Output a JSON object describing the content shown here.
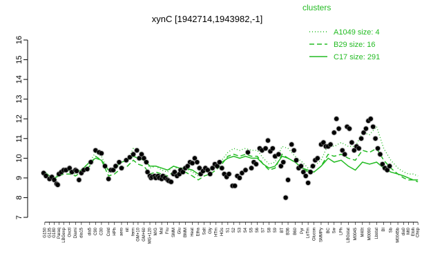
{
  "chart_data": {
    "type": "line",
    "title": "xynC [1942714,1943982,-1]",
    "xlabel": "",
    "ylabel": "",
    "ylim": [
      7,
      16
    ],
    "yticks": [
      7,
      8,
      9,
      10,
      11,
      12,
      13,
      14,
      15,
      16
    ],
    "grid": false,
    "legend": {
      "title": "clusters",
      "position": "top-right",
      "color": "#22bb22",
      "entries": [
        {
          "label": "A1049 size: 4",
          "style": "dotted"
        },
        {
          "label": "B29 size: 16",
          "style": "dashed"
        },
        {
          "label": "C17 size: 291",
          "style": "solid"
        }
      ]
    },
    "colors": {
      "line": "#22bb22",
      "points": "#000000"
    },
    "x_labels": [
      "G150",
      "G135",
      "G180",
      "Paraq",
      "LBGexp",
      "Oxctl",
      "Diami",
      "dia15",
      "dia5",
      "C90",
      "C30",
      "Cold",
      "HPh",
      "aero",
      "nit",
      "ferm",
      "GM+10",
      "GM+60",
      "MG+120",
      "M/G",
      "Mal",
      "Fru",
      "SMM",
      "Glu",
      "BMM",
      "Heat",
      "Etha",
      "Salt",
      "Gly",
      "HTm",
      "HGs",
      "S1",
      "S2",
      "S3",
      "S4",
      "S5",
      "S6",
      "S7",
      "S8",
      "S9",
      "BT",
      "B36",
      "B60",
      "Pyr",
      "LoTm",
      "Glucon",
      "SMMPy",
      "BC",
      "Sw",
      "LPh",
      "LBGstat",
      "M0045",
      "M40t",
      "M0090",
      "Lbstat",
      "BI",
      "Sb",
      "M0045b",
      "dia0",
      "Mt0",
      "Etoh",
      "Chsp"
    ],
    "x": [
      0.4,
      0.8,
      1.2,
      1.6,
      2.0,
      2.5,
      3.0,
      3.5,
      4.2,
      4.7,
      5.2,
      5.8,
      6.3,
      6.9,
      7.4,
      7.9,
      8.3,
      8.8,
      9.3,
      9.8,
      10.3,
      10.8,
      11.3,
      11.8,
      12.3,
      12.9,
      13.4,
      13.9,
      14.4,
      14.9,
      15.4,
      15.9,
      16.4,
      16.9,
      17.4,
      17.9,
      18.4,
      18.9,
      19.4,
      19.9,
      20.5,
      21.0,
      21.6,
      22.2,
      22.7,
      23.2,
      23.8,
      24.4,
      24.9,
      25.5,
      26.1,
      26.7,
      27.3,
      27.9,
      28.5,
      29.1,
      29.7,
      30.3,
      30.8,
      31.2,
      31.6,
      32.0
    ],
    "series": [
      {
        "values": [
          9.2,
          9.0,
          9.0,
          9.2,
          9.3,
          9.3,
          9.2,
          9.4,
          9.8,
          10.3,
          10.1,
          9.3,
          9.4,
          9.8,
          9.9,
          10.5,
          10.4,
          10.1,
          9.5,
          9.6,
          9.4,
          9.3,
          9.6,
          9.4,
          9.5,
          9.3,
          9.1,
          9.3,
          9.4,
          9.6,
          9.9,
          10.3,
          10.5,
          10.4,
          10.5,
          10.4,
          10.4,
          10.0,
          9.7,
          9.8,
          10.6,
          10.5,
          10.1,
          9.8,
          9.5,
          9.6,
          9.9,
          10.7,
          10.6,
          10.8,
          10.6,
          10.6,
          11.3,
          11.2,
          11.6,
          10.5,
          9.9,
          9.5,
          9.3,
          9.2,
          9.2,
          9.1
        ]
      },
      {
        "values": [
          9.1,
          9.0,
          9.0,
          9.1,
          9.2,
          9.2,
          9.1,
          9.3,
          9.6,
          10.1,
          9.9,
          9.1,
          9.2,
          9.5,
          9.6,
          9.9,
          9.7,
          9.6,
          9.2,
          9.3,
          9.2,
          9.1,
          9.3,
          9.2,
          9.3,
          9.1,
          8.9,
          9.1,
          9.2,
          9.4,
          9.7,
          10.1,
          10.2,
          10.1,
          10.2,
          10.1,
          10.1,
          9.7,
          9.4,
          9.5,
          10.2,
          10.0,
          9.8,
          9.5,
          9.3,
          9.3,
          9.6,
          10.2,
          10.1,
          10.2,
          10.0,
          9.9,
          10.4,
          10.3,
          10.5,
          9.9,
          9.5,
          9.2,
          9.0,
          8.9,
          8.9,
          8.8
        ]
      },
      {
        "values": [
          9.3,
          9.1,
          9.0,
          9.1,
          9.3,
          9.4,
          9.3,
          9.4,
          9.8,
          10.0,
          9.9,
          9.4,
          9.5,
          9.8,
          9.9,
          10.1,
          10.0,
          9.9,
          9.6,
          9.6,
          9.5,
          9.4,
          9.6,
          9.5,
          9.5,
          9.4,
          9.2,
          9.3,
          9.4,
          9.6,
          9.8,
          10.0,
          10.1,
          10.0,
          10.1,
          10.0,
          10.0,
          9.7,
          9.5,
          9.6,
          10.1,
          10.0,
          9.8,
          9.5,
          9.4,
          9.3,
          9.6,
          10.0,
          9.8,
          9.9,
          9.6,
          9.4,
          9.8,
          9.7,
          9.8,
          9.5,
          9.3,
          9.2,
          9.1,
          9.0,
          8.9,
          8.9
        ]
      }
    ],
    "points": [
      [
        0.3,
        9.25
      ],
      [
        0.5,
        9.1
      ],
      [
        0.8,
        8.95
      ],
      [
        1.0,
        9.05
      ],
      [
        1.2,
        8.9
      ],
      [
        1.4,
        8.7
      ],
      [
        1.5,
        8.65
      ],
      [
        1.6,
        9.2
      ],
      [
        1.8,
        9.3
      ],
      [
        2.0,
        9.4
      ],
      [
        2.2,
        9.4
      ],
      [
        2.5,
        9.5
      ],
      [
        2.7,
        9.3
      ],
      [
        3.0,
        9.4
      ],
      [
        3.1,
        9.35
      ],
      [
        3.3,
        8.9
      ],
      [
        3.5,
        9.25
      ],
      [
        3.7,
        9.4
      ],
      [
        4.0,
        9.45
      ],
      [
        4.3,
        9.8
      ],
      [
        4.7,
        10.4
      ],
      [
        5.0,
        10.3
      ],
      [
        5.2,
        10.25
      ],
      [
        5.5,
        9.6
      ],
      [
        5.8,
        8.95
      ],
      [
        6.0,
        9.4
      ],
      [
        6.2,
        9.4
      ],
      [
        6.4,
        9.6
      ],
      [
        6.7,
        9.8
      ],
      [
        6.9,
        9.5
      ],
      [
        7.3,
        9.9
      ],
      [
        7.6,
        10.05
      ],
      [
        7.9,
        10.2
      ],
      [
        8.2,
        10.4
      ],
      [
        8.4,
        10.0
      ],
      [
        8.6,
        10.2
      ],
      [
        8.8,
        10.0
      ],
      [
        9.0,
        9.8
      ],
      [
        9.1,
        9.3
      ],
      [
        9.3,
        9.1
      ],
      [
        9.4,
        9.0
      ],
      [
        9.5,
        9.05
      ],
      [
        9.7,
        9.1
      ],
      [
        9.8,
        9.0
      ],
      [
        10.0,
        9.1
      ],
      [
        10.1,
        9.0
      ],
      [
        10.3,
        8.95
      ],
      [
        10.4,
        9.1
      ],
      [
        10.6,
        9.0
      ],
      [
        10.8,
        8.9
      ],
      [
        10.9,
        8.85
      ],
      [
        11.1,
        8.8
      ],
      [
        11.3,
        9.2
      ],
      [
        11.4,
        9.3
      ],
      [
        11.6,
        9.1
      ],
      [
        11.8,
        9.2
      ],
      [
        11.9,
        9.4
      ],
      [
        12.1,
        9.3
      ],
      [
        12.3,
        9.5
      ],
      [
        12.5,
        9.6
      ],
      [
        12.7,
        9.8
      ],
      [
        12.9,
        9.75
      ],
      [
        13.1,
        10.0
      ],
      [
        13.3,
        9.8
      ],
      [
        13.5,
        9.5
      ],
      [
        13.6,
        9.2
      ],
      [
        13.8,
        9.35
      ],
      [
        14.0,
        9.5
      ],
      [
        14.2,
        9.4
      ],
      [
        14.4,
        9.2
      ],
      [
        14.6,
        9.5
      ],
      [
        14.8,
        9.7
      ],
      [
        15.0,
        9.6
      ],
      [
        15.2,
        9.8
      ],
      [
        15.4,
        9.5
      ],
      [
        15.6,
        9.2
      ],
      [
        15.8,
        9.05
      ],
      [
        16.0,
        9.2
      ],
      [
        16.3,
        8.6
      ],
      [
        16.5,
        8.6
      ],
      [
        16.7,
        9.1
      ],
      [
        16.9,
        9.0
      ],
      [
        17.1,
        9.25
      ],
      [
        17.4,
        9.4
      ],
      [
        17.6,
        10.3
      ],
      [
        17.9,
        9.5
      ],
      [
        18.1,
        9.8
      ],
      [
        18.3,
        9.7
      ],
      [
        18.6,
        10.5
      ],
      [
        18.8,
        10.4
      ],
      [
        19.1,
        10.5
      ],
      [
        19.3,
        10.9
      ],
      [
        19.5,
        10.35
      ],
      [
        19.7,
        10.5
      ],
      [
        19.9,
        10.1
      ],
      [
        20.2,
        10.2
      ],
      [
        20.4,
        9.6
      ],
      [
        20.6,
        9.8
      ],
      [
        20.8,
        8.0
      ],
      [
        21.0,
        8.9
      ],
      [
        21.3,
        10.7
      ],
      [
        21.5,
        10.4
      ],
      [
        21.7,
        9.9
      ],
      [
        21.9,
        9.5
      ],
      [
        22.1,
        9.6
      ],
      [
        22.3,
        9.3
      ],
      [
        22.5,
        9.1
      ],
      [
        22.7,
        8.75
      ],
      [
        22.9,
        9.3
      ],
      [
        23.1,
        9.6
      ],
      [
        23.3,
        9.9
      ],
      [
        23.5,
        10.0
      ],
      [
        23.8,
        10.7
      ],
      [
        24.0,
        10.8
      ],
      [
        24.2,
        10.6
      ],
      [
        24.4,
        10.6
      ],
      [
        24.6,
        10.7
      ],
      [
        24.9,
        11.3
      ],
      [
        25.1,
        12.0
      ],
      [
        25.3,
        11.5
      ],
      [
        25.6,
        10.4
      ],
      [
        25.8,
        10.2
      ],
      [
        26.0,
        11.6
      ],
      [
        26.2,
        11.5
      ],
      [
        26.4,
        10.8
      ],
      [
        26.6,
        10.4
      ],
      [
        26.8,
        10.6
      ],
      [
        27.0,
        10.5
      ],
      [
        27.2,
        11.0
      ],
      [
        27.4,
        11.3
      ],
      [
        27.6,
        11.5
      ],
      [
        27.8,
        11.9
      ],
      [
        28.0,
        12.0
      ],
      [
        28.2,
        11.6
      ],
      [
        28.4,
        11.0
      ],
      [
        28.6,
        10.5
      ],
      [
        28.8,
        10.2
      ],
      [
        29.0,
        9.7
      ],
      [
        29.2,
        9.5
      ],
      [
        29.4,
        9.4
      ],
      [
        29.6,
        9.6
      ]
    ]
  }
}
